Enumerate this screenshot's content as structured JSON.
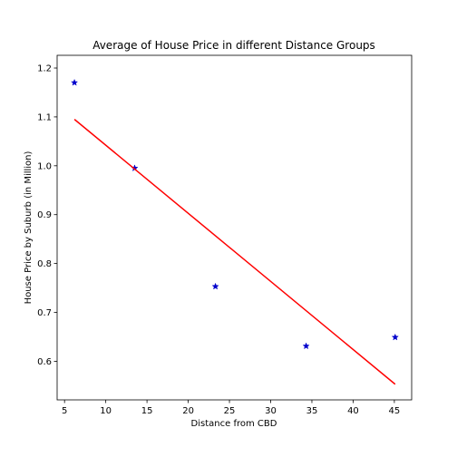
{
  "chart_data": {
    "type": "scatter",
    "title": "Average of House Price in different Distance Groups",
    "xlabel": "Distance from CBD",
    "ylabel": "House Price by Suburb (in Million)",
    "xlim": [
      4.1,
      47.1
    ],
    "ylim": [
      0.521,
      1.226
    ],
    "x_ticks": [
      5,
      10,
      15,
      20,
      25,
      30,
      35,
      40,
      45
    ],
    "y_ticks": [
      0.6,
      0.7,
      0.8,
      0.9,
      1.0,
      1.1,
      1.2
    ],
    "x_tick_labels": [
      "5",
      "10",
      "15",
      "20",
      "25",
      "30",
      "35",
      "40",
      "45"
    ],
    "y_tick_labels": [
      "0.6",
      "0.7",
      "0.8",
      "0.9",
      "1.0",
      "1.1",
      "1.2"
    ],
    "grid": false,
    "series": [
      {
        "marker": "star",
        "color": "#0000cc",
        "points": [
          {
            "x": 6.2,
            "y": 1.17
          },
          {
            "x": 13.5,
            "y": 0.995
          },
          {
            "x": 23.3,
            "y": 0.753
          },
          {
            "x": 34.3,
            "y": 0.631
          },
          {
            "x": 45.1,
            "y": 0.649
          }
        ]
      },
      {
        "type": "line",
        "color": "#ff0000",
        "points": [
          {
            "x": 6.2,
            "y": 1.095
          },
          {
            "x": 45.1,
            "y": 0.553
          }
        ]
      }
    ]
  }
}
